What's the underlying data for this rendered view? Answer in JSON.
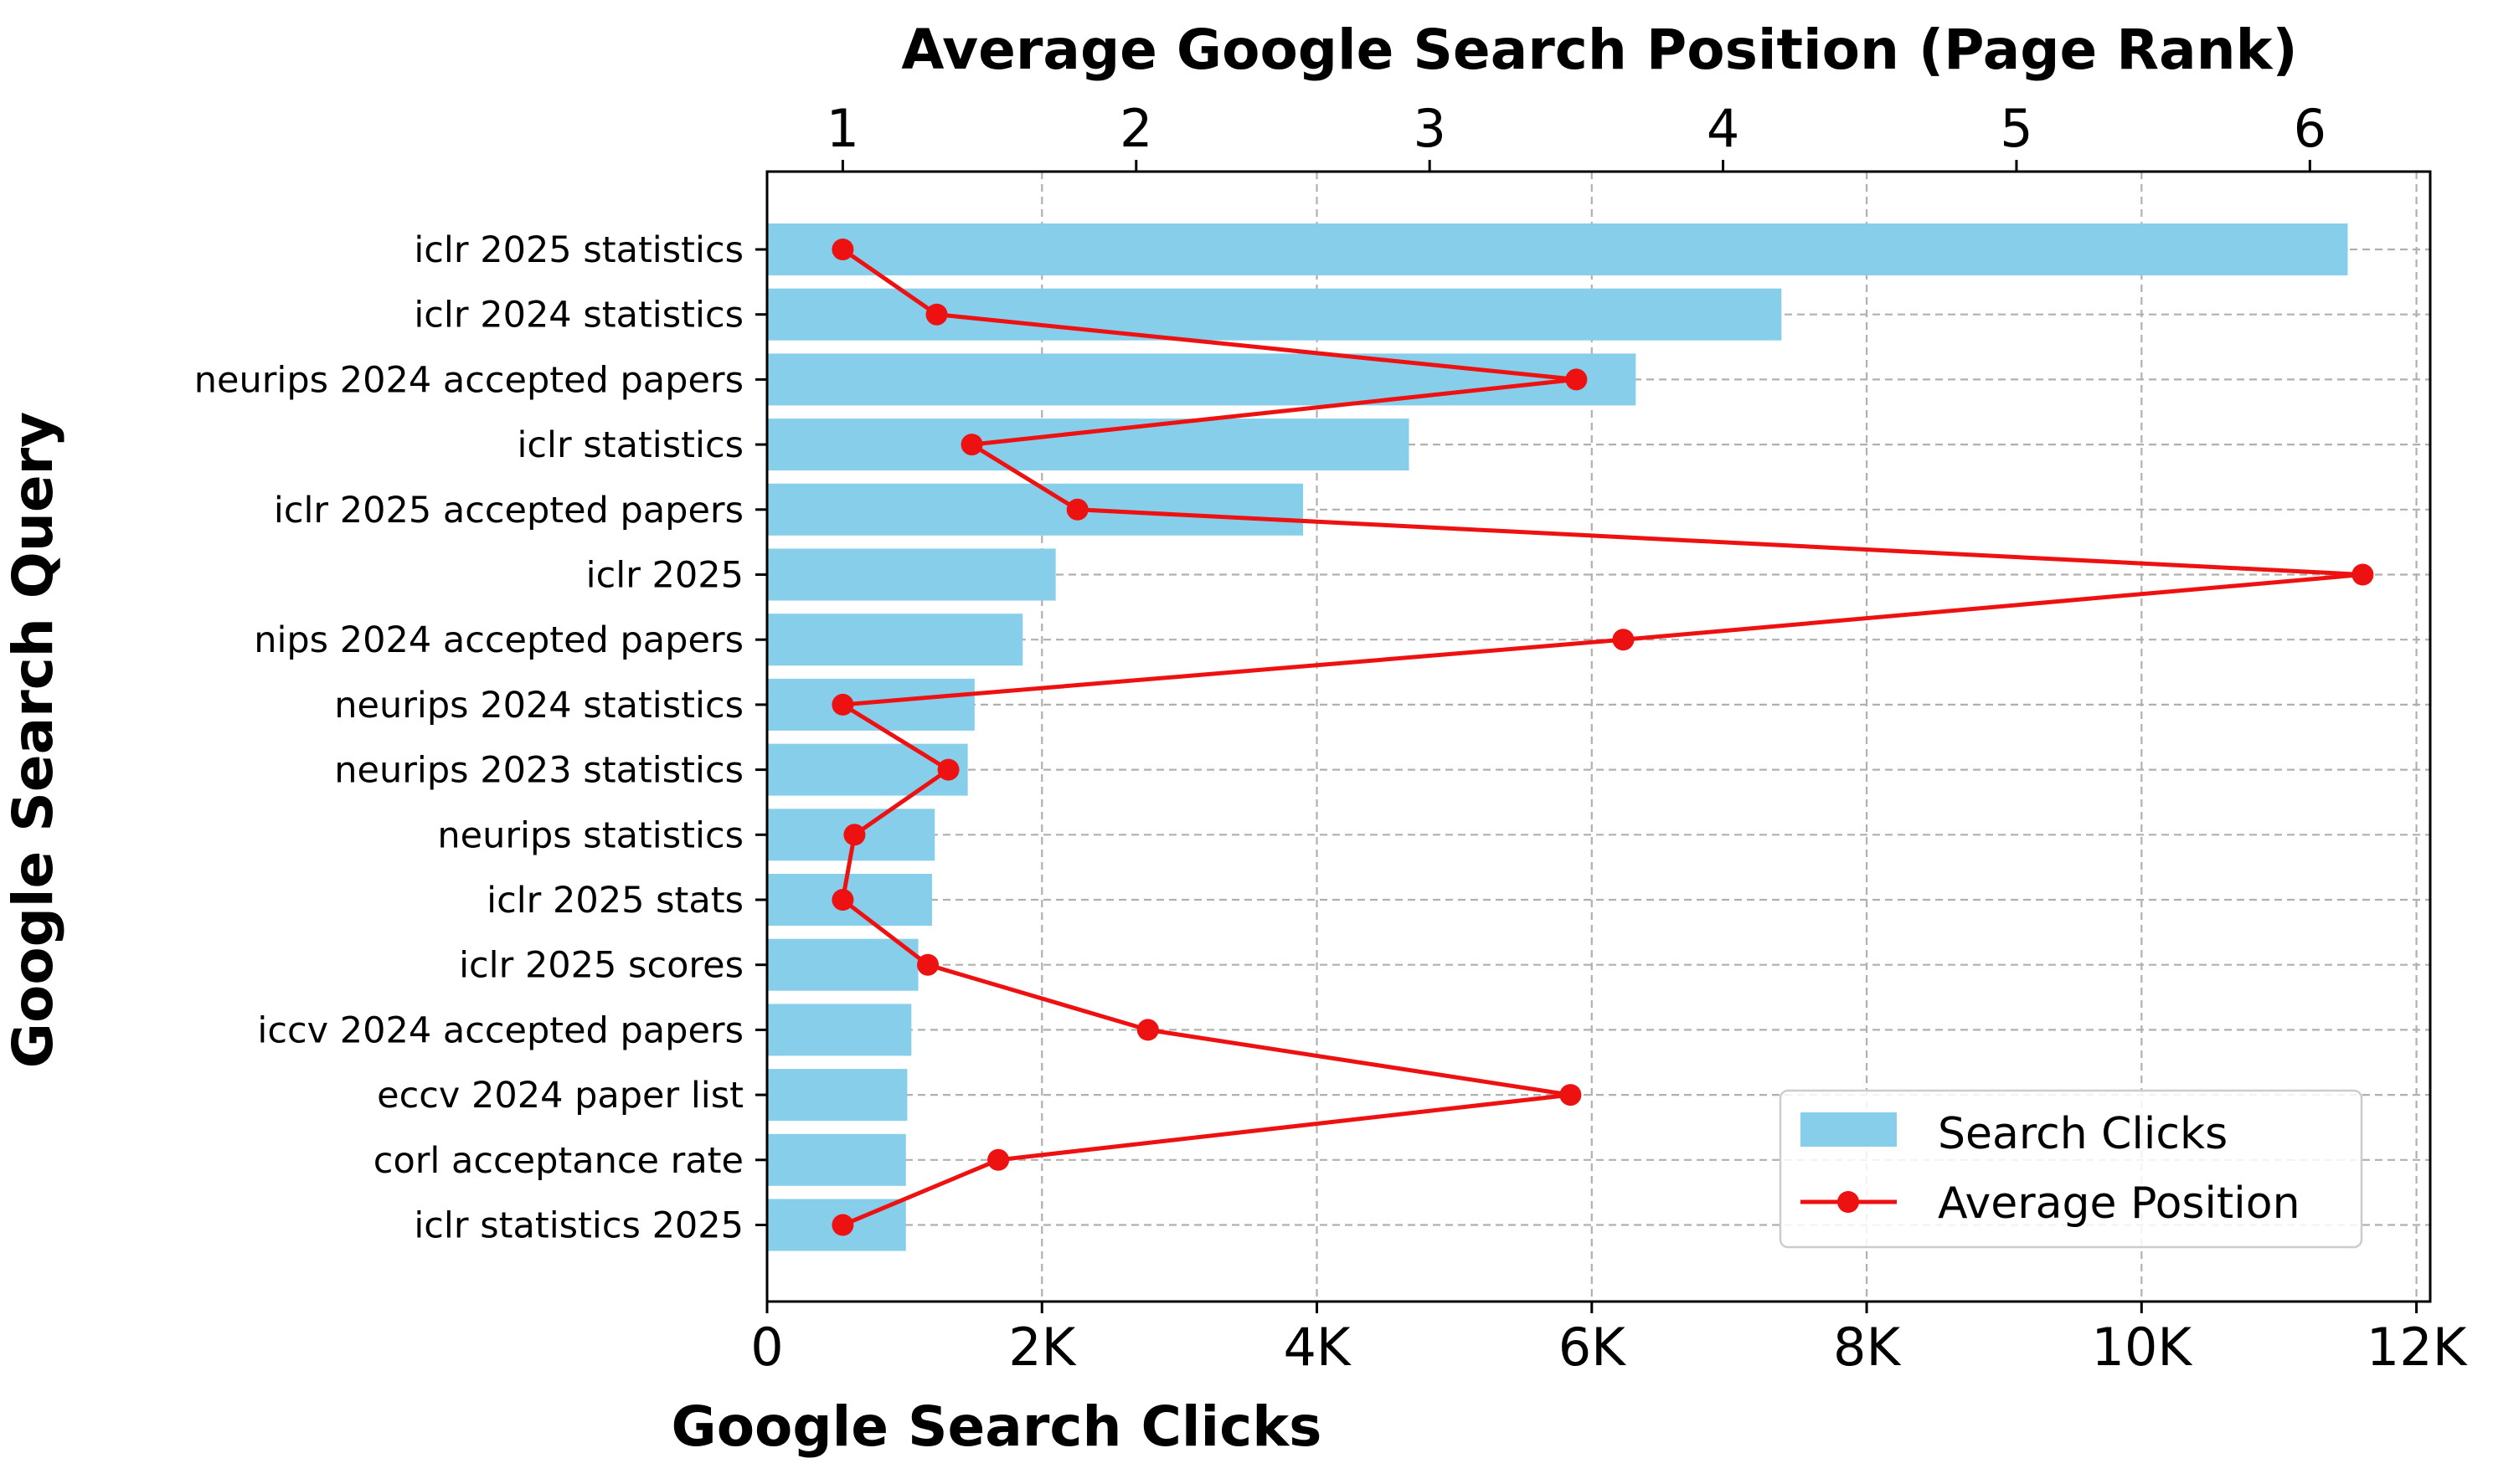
{
  "chart_data": {
    "type": "bar",
    "orientation": "horizontal",
    "categories": [
      "iclr 2025 statistics",
      "iclr 2024 statistics",
      "neurips 2024 accepted papers",
      "iclr statistics",
      "iclr 2025 accepted papers",
      "iclr 2025",
      "nips 2024 accepted papers",
      "neurips 2024 statistics",
      "neurips 2023 statistics",
      "neurips statistics",
      "iclr 2025 stats",
      "iclr 2025 scores",
      "iccv 2024 accepted papers",
      "eccv 2024 paper list",
      "corl acceptance rate",
      "iclr statistics 2025"
    ],
    "series": [
      {
        "name": "Search Clicks",
        "type": "bar",
        "axis": "bottom",
        "color": "#87ceeb",
        "values": [
          11500,
          7380,
          6320,
          4670,
          3900,
          2100,
          1860,
          1510,
          1460,
          1220,
          1200,
          1100,
          1050,
          1020,
          1010,
          1010
        ]
      },
      {
        "name": "Average Position",
        "type": "line",
        "axis": "top",
        "color": "#ee1111",
        "marker": "circle",
        "values": [
          1.0,
          1.32,
          3.5,
          1.44,
          1.8,
          6.18,
          3.66,
          1.0,
          1.36,
          1.04,
          1.0,
          1.29,
          2.04,
          3.48,
          1.53,
          1.0
        ]
      }
    ],
    "xlabel": "Google Search Clicks",
    "x2label": "Average Google Search Position (Page Rank)",
    "ylabel": "Google Search Query",
    "xlim": [
      0,
      12100
    ],
    "x2lim": [
      0.742,
      6.41
    ],
    "xticks": [
      0,
      2000,
      4000,
      6000,
      8000,
      10000,
      12000
    ],
    "xtick_labels": [
      "0",
      "2K",
      "4K",
      "6K",
      "8K",
      "10K",
      "12K"
    ],
    "x2ticks": [
      1,
      2,
      3,
      4,
      5,
      6
    ],
    "x2tick_labels": [
      "1",
      "2",
      "3",
      "4",
      "5",
      "6"
    ],
    "grid": true,
    "legend": {
      "placement": "lower-right",
      "entries": [
        "Search Clicks",
        "Average Position"
      ]
    }
  }
}
